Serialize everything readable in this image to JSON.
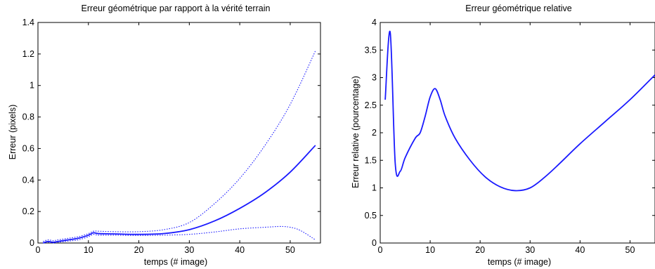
{
  "chart_data": [
    {
      "type": "line",
      "title": "Erreur géométrique par rapport à la vérité terrain",
      "xlabel": "temps (# image)",
      "ylabel": "Erreur (pixels)",
      "xlim": [
        0,
        56
      ],
      "ylim": [
        0,
        1.4
      ],
      "xticks": [
        0,
        10,
        20,
        30,
        40,
        50
      ],
      "yticks": [
        0,
        0.2,
        0.4,
        0.6,
        0.8,
        1,
        1.2,
        1.4
      ],
      "ytick_labels": [
        "0",
        "0.2",
        "0.4",
        "0.6",
        "0.8",
        "1",
        "1.2",
        "1.4"
      ],
      "xtick_labels": [
        "0",
        "10",
        "20",
        "30",
        "40",
        "50"
      ],
      "grid": false,
      "line_color": "#1a1aff",
      "series": [
        {
          "style": "solid",
          "x": [
            1,
            2,
            3,
            4,
            6,
            8,
            10,
            11,
            12,
            15,
            20,
            25,
            30,
            35,
            40,
            45,
            50,
            55
          ],
          "y": [
            0.0,
            0.01,
            0.005,
            0.01,
            0.02,
            0.03,
            0.05,
            0.065,
            0.06,
            0.058,
            0.055,
            0.06,
            0.085,
            0.14,
            0.22,
            0.32,
            0.45,
            0.62
          ]
        },
        {
          "style": "dotted",
          "x": [
            1,
            2,
            3,
            4,
            6,
            8,
            10,
            11,
            12,
            15,
            20,
            25,
            30,
            35,
            40,
            45,
            50,
            55
          ],
          "y": [
            0.01,
            0.02,
            0.015,
            0.02,
            0.03,
            0.04,
            0.06,
            0.075,
            0.075,
            0.072,
            0.072,
            0.085,
            0.13,
            0.25,
            0.41,
            0.62,
            0.88,
            1.22
          ]
        },
        {
          "style": "dotted",
          "x": [
            1,
            2,
            3,
            4,
            6,
            8,
            10,
            11,
            12,
            15,
            20,
            25,
            30,
            35,
            40,
            45,
            48,
            50,
            52,
            55
          ],
          "y": [
            0.0,
            0.005,
            0.0,
            0.005,
            0.012,
            0.02,
            0.04,
            0.055,
            0.05,
            0.05,
            0.048,
            0.05,
            0.055,
            0.07,
            0.09,
            0.1,
            0.105,
            0.1,
            0.08,
            0.02
          ]
        }
      ]
    },
    {
      "type": "line",
      "title": "Erreur géométrique relative",
      "xlabel": "temps (# image)",
      "ylabel": "Erreur relative (pourcentage)",
      "xlim": [
        0,
        55
      ],
      "ylim": [
        0,
        4
      ],
      "xticks": [
        0,
        10,
        20,
        30,
        40,
        50
      ],
      "yticks": [
        0,
        0.5,
        1,
        1.5,
        2,
        2.5,
        3,
        3.5,
        4
      ],
      "ytick_labels": [
        "0",
        "0.5",
        "1",
        "1.5",
        "2",
        "2.5",
        "3",
        "3.5",
        "4"
      ],
      "xtick_labels": [
        "0",
        "10",
        "20",
        "30",
        "40",
        "50"
      ],
      "grid": false,
      "line_color": "#1a1aff",
      "series": [
        {
          "style": "solid",
          "x": [
            1,
            2,
            3,
            4,
            5,
            7,
            8,
            9,
            10,
            11,
            12,
            13,
            15,
            18,
            21,
            24,
            27,
            30,
            33,
            36,
            40,
            45,
            50,
            55
          ],
          "y": [
            2.6,
            3.82,
            1.45,
            1.3,
            1.55,
            1.9,
            2.0,
            2.3,
            2.65,
            2.8,
            2.6,
            2.3,
            1.9,
            1.5,
            1.2,
            1.02,
            0.95,
            1.0,
            1.2,
            1.45,
            1.8,
            2.2,
            2.6,
            3.05
          ]
        }
      ]
    }
  ]
}
